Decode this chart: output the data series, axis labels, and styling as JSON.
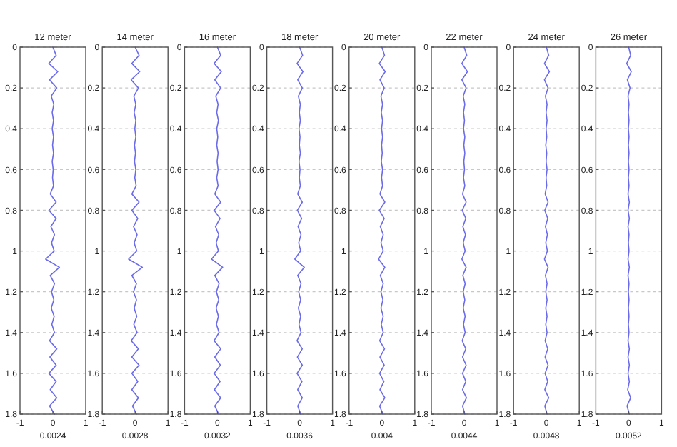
{
  "chart_data": [
    {
      "type": "line",
      "title": "12 meter",
      "xlabel": "0.0024",
      "xlim": [
        -1,
        1
      ],
      "xticks": [
        -1,
        0,
        1
      ],
      "ylim": [
        1.8,
        0
      ],
      "yticks": [
        0,
        0.2,
        0.4,
        0.6,
        0.8,
        1,
        1.2,
        1.4,
        1.6,
        1.8
      ],
      "grid": "y",
      "series": [
        {
          "color": "#6b6bea",
          "x": [
            0,
            0.1,
            -0.12,
            0.15,
            -0.1,
            0.12,
            -0.05,
            0.03,
            -0.02,
            0.02,
            -0.02,
            0.02,
            -0.01,
            0.02,
            -0.02,
            0.01,
            -0.01,
            0.02,
            -0.08,
            0.1,
            -0.12,
            0.1,
            -0.06,
            0.05,
            -0.04,
            0.04,
            -0.22,
            0.2,
            -0.08,
            0.05,
            -0.04,
            0.03,
            -0.05,
            0.04,
            -0.03,
            0.05,
            -0.1,
            0.12,
            -0.09,
            0.1,
            -0.12,
            0.1,
            -0.08,
            0.12,
            -0.1,
            0.05
          ],
          "values": [
            0,
            0.04,
            0.08,
            0.12,
            0.16,
            0.2,
            0.24,
            0.28,
            0.32,
            0.36,
            0.4,
            0.44,
            0.48,
            0.52,
            0.56,
            0.6,
            0.64,
            0.68,
            0.72,
            0.76,
            0.8,
            0.84,
            0.88,
            0.92,
            0.96,
            1,
            1.04,
            1.08,
            1.12,
            1.16,
            1.2,
            1.24,
            1.28,
            1.32,
            1.36,
            1.4,
            1.44,
            1.48,
            1.52,
            1.56,
            1.6,
            1.64,
            1.68,
            1.72,
            1.76,
            1.8
          ]
        }
      ]
    },
    {
      "type": "line",
      "title": "14 meter",
      "xlabel": "0.0028",
      "xlim": [
        -1,
        1
      ],
      "xticks": [
        -1,
        0,
        1
      ],
      "ylim": [
        1.8,
        0
      ],
      "yticks": [
        0,
        0.2,
        0.4,
        0.6,
        0.8,
        1,
        1.2,
        1.4,
        1.6,
        1.8
      ],
      "grid": "y",
      "series": [
        {
          "color": "#6b6bea",
          "x": [
            0,
            0.12,
            -0.1,
            0.14,
            -0.12,
            0.1,
            -0.04,
            0.02,
            -0.03,
            0.02,
            -0.01,
            0.02,
            -0.02,
            0.01,
            -0.02,
            0.02,
            -0.01,
            0.03,
            -0.1,
            0.12,
            -0.1,
            0.08,
            -0.05,
            0.06,
            -0.03,
            0.05,
            -0.2,
            0.22,
            -0.1,
            0.04,
            -0.05,
            0.04,
            -0.03,
            0.05,
            -0.04,
            0.06,
            -0.12,
            0.1,
            -0.1,
            0.12,
            -0.1,
            0.08,
            -0.1,
            0.1,
            -0.08,
            0.04
          ],
          "values": [
            0,
            0.04,
            0.08,
            0.12,
            0.16,
            0.2,
            0.24,
            0.28,
            0.32,
            0.36,
            0.4,
            0.44,
            0.48,
            0.52,
            0.56,
            0.6,
            0.64,
            0.68,
            0.72,
            0.76,
            0.8,
            0.84,
            0.88,
            0.92,
            0.96,
            1,
            1.04,
            1.08,
            1.12,
            1.16,
            1.2,
            1.24,
            1.28,
            1.32,
            1.36,
            1.4,
            1.44,
            1.48,
            1.52,
            1.56,
            1.6,
            1.64,
            1.68,
            1.72,
            1.76,
            1.8
          ]
        }
      ]
    },
    {
      "type": "line",
      "title": "16 meter",
      "xlabel": "0.0032",
      "xlim": [
        -1,
        1
      ],
      "xticks": [
        -1,
        0,
        1
      ],
      "ylim": [
        1.8,
        0
      ],
      "yticks": [
        0,
        0.2,
        0.4,
        0.6,
        0.8,
        1,
        1.2,
        1.4,
        1.6,
        1.8
      ],
      "grid": "y",
      "series": [
        {
          "color": "#6b6bea",
          "x": [
            0,
            0.1,
            -0.1,
            0.12,
            -0.08,
            0.1,
            -0.05,
            0.02,
            -0.02,
            0.03,
            -0.02,
            0.01,
            -0.02,
            0.02,
            -0.01,
            0.02,
            -0.02,
            0.02,
            -0.08,
            0.1,
            -0.1,
            0.08,
            -0.06,
            0.04,
            -0.04,
            0.03,
            -0.18,
            0.16,
            -0.08,
            0.05,
            -0.03,
            0.04,
            -0.04,
            0.03,
            -0.03,
            0.05,
            -0.1,
            0.1,
            -0.08,
            0.09,
            -0.1,
            0.08,
            -0.09,
            0.1,
            -0.08,
            0.04
          ],
          "values": [
            0,
            0.04,
            0.08,
            0.12,
            0.16,
            0.2,
            0.24,
            0.28,
            0.32,
            0.36,
            0.4,
            0.44,
            0.48,
            0.52,
            0.56,
            0.6,
            0.64,
            0.68,
            0.72,
            0.76,
            0.8,
            0.84,
            0.88,
            0.92,
            0.96,
            1,
            1.04,
            1.08,
            1.12,
            1.16,
            1.2,
            1.24,
            1.28,
            1.32,
            1.36,
            1.4,
            1.44,
            1.48,
            1.52,
            1.56,
            1.6,
            1.64,
            1.68,
            1.72,
            1.76,
            1.8
          ]
        }
      ]
    },
    {
      "type": "line",
      "title": "18 meter",
      "xlabel": "0.0036",
      "xlim": [
        -1,
        1
      ],
      "xticks": [
        -1,
        0,
        1
      ],
      "ylim": [
        1.8,
        0
      ],
      "yticks": [
        0,
        0.2,
        0.4,
        0.6,
        0.8,
        1,
        1.2,
        1.4,
        1.6,
        1.8
      ],
      "grid": "y",
      "series": [
        {
          "color": "#6b6bea",
          "x": [
            0,
            0.09,
            -0.08,
            0.1,
            -0.06,
            0.08,
            -0.04,
            0.02,
            -0.01,
            0.02,
            -0.02,
            0.01,
            -0.01,
            0.02,
            -0.02,
            0.01,
            -0.01,
            0.02,
            -0.06,
            0.08,
            -0.07,
            0.06,
            -0.05,
            0.04,
            -0.03,
            0.03,
            -0.15,
            0.14,
            -0.06,
            0.04,
            -0.03,
            0.03,
            -0.04,
            0.03,
            -0.02,
            0.04,
            -0.08,
            0.08,
            -0.07,
            0.08,
            -0.08,
            0.07,
            -0.06,
            0.08,
            -0.06,
            0.03
          ],
          "values": [
            0,
            0.04,
            0.08,
            0.12,
            0.16,
            0.2,
            0.24,
            0.28,
            0.32,
            0.36,
            0.4,
            0.44,
            0.48,
            0.52,
            0.56,
            0.6,
            0.64,
            0.68,
            0.72,
            0.76,
            0.8,
            0.84,
            0.88,
            0.92,
            0.96,
            1,
            1.04,
            1.08,
            1.12,
            1.16,
            1.2,
            1.24,
            1.28,
            1.32,
            1.36,
            1.4,
            1.44,
            1.48,
            1.52,
            1.56,
            1.6,
            1.64,
            1.68,
            1.72,
            1.76,
            1.8
          ]
        }
      ]
    },
    {
      "type": "line",
      "title": "20 meter",
      "xlabel": "0.004",
      "xlim": [
        -1,
        1
      ],
      "xticks": [
        -1,
        0,
        1
      ],
      "ylim": [
        1.8,
        0
      ],
      "yticks": [
        0,
        0.2,
        0.4,
        0.6,
        0.8,
        1,
        1.2,
        1.4,
        1.6,
        1.8
      ],
      "grid": "y",
      "series": [
        {
          "color": "#6b6bea",
          "x": [
            0,
            0.08,
            -0.08,
            0.1,
            -0.06,
            0.07,
            -0.03,
            0.02,
            -0.02,
            0.02,
            -0.01,
            0.02,
            -0.01,
            0.01,
            -0.02,
            0.02,
            -0.01,
            0.02,
            -0.06,
            0.09,
            -0.08,
            0.07,
            -0.05,
            0.04,
            -0.03,
            0.04,
            -0.1,
            0.09,
            -0.05,
            0.04,
            -0.03,
            0.03,
            -0.03,
            0.04,
            -0.02,
            0.04,
            -0.07,
            0.08,
            -0.06,
            0.07,
            -0.07,
            0.06,
            -0.06,
            0.09,
            -0.07,
            0.03
          ],
          "values": [
            0,
            0.04,
            0.08,
            0.12,
            0.16,
            0.2,
            0.24,
            0.28,
            0.32,
            0.36,
            0.4,
            0.44,
            0.48,
            0.52,
            0.56,
            0.6,
            0.64,
            0.68,
            0.72,
            0.76,
            0.8,
            0.84,
            0.88,
            0.92,
            0.96,
            1,
            1.04,
            1.08,
            1.12,
            1.16,
            1.2,
            1.24,
            1.28,
            1.32,
            1.36,
            1.4,
            1.44,
            1.48,
            1.52,
            1.56,
            1.6,
            1.64,
            1.68,
            1.72,
            1.76,
            1.8
          ]
        }
      ]
    },
    {
      "type": "line",
      "title": "22 meter",
      "xlabel": "0.0044",
      "xlim": [
        -1,
        1
      ],
      "xticks": [
        -1,
        0,
        1
      ],
      "ylim": [
        1.8,
        0
      ],
      "yticks": [
        0,
        0.2,
        0.4,
        0.6,
        0.8,
        1,
        1.2,
        1.4,
        1.6,
        1.8
      ],
      "grid": "y",
      "series": [
        {
          "color": "#6b6bea",
          "x": [
            0,
            0.08,
            -0.07,
            0.1,
            -0.07,
            0.06,
            -0.03,
            0.02,
            -0.02,
            0.01,
            -0.02,
            0.02,
            -0.01,
            0.02,
            -0.01,
            0.01,
            -0.02,
            0.02,
            -0.05,
            0.06,
            -0.06,
            0.05,
            -0.04,
            0.04,
            -0.03,
            0.03,
            -0.07,
            0.06,
            -0.04,
            0.03,
            -0.03,
            0.02,
            -0.03,
            0.03,
            -0.02,
            0.03,
            -0.06,
            0.05,
            -0.05,
            0.06,
            -0.05,
            0.05,
            -0.05,
            0.07,
            -0.05,
            0.02
          ],
          "values": [
            0,
            0.04,
            0.08,
            0.12,
            0.16,
            0.2,
            0.24,
            0.28,
            0.32,
            0.36,
            0.4,
            0.44,
            0.48,
            0.52,
            0.56,
            0.6,
            0.64,
            0.68,
            0.72,
            0.76,
            0.8,
            0.84,
            0.88,
            0.92,
            0.96,
            1,
            1.04,
            1.08,
            1.12,
            1.16,
            1.2,
            1.24,
            1.28,
            1.32,
            1.36,
            1.4,
            1.44,
            1.48,
            1.52,
            1.56,
            1.6,
            1.64,
            1.68,
            1.72,
            1.76,
            1.8
          ]
        }
      ]
    },
    {
      "type": "line",
      "title": "24 meter",
      "xlabel": "0.0048",
      "xlim": [
        -1,
        1
      ],
      "xticks": [
        -1,
        0,
        1
      ],
      "ylim": [
        1.8,
        0
      ],
      "yticks": [
        0,
        0.2,
        0.4,
        0.6,
        0.8,
        1,
        1.2,
        1.4,
        1.6,
        1.8
      ],
      "grid": "y",
      "series": [
        {
          "color": "#6b6bea",
          "x": [
            0,
            0.07,
            -0.06,
            0.09,
            -0.06,
            0.05,
            -0.03,
            0.02,
            -0.01,
            0.02,
            -0.01,
            0.01,
            -0.02,
            0.01,
            -0.01,
            0.02,
            -0.01,
            0.01,
            -0.04,
            0.05,
            -0.05,
            0.04,
            -0.03,
            0.03,
            -0.02,
            0.03,
            -0.06,
            0.05,
            -0.03,
            0.02,
            -0.02,
            0.02,
            -0.02,
            0.02,
            -0.02,
            0.02,
            -0.04,
            0.04,
            -0.04,
            0.05,
            -0.04,
            0.04,
            -0.05,
            0.07,
            -0.05,
            0.02
          ],
          "values": [
            0,
            0.04,
            0.08,
            0.12,
            0.16,
            0.2,
            0.24,
            0.28,
            0.32,
            0.36,
            0.4,
            0.44,
            0.48,
            0.52,
            0.56,
            0.6,
            0.64,
            0.68,
            0.72,
            0.76,
            0.8,
            0.84,
            0.88,
            0.92,
            0.96,
            1,
            1.04,
            1.08,
            1.12,
            1.16,
            1.2,
            1.24,
            1.28,
            1.32,
            1.36,
            1.4,
            1.44,
            1.48,
            1.52,
            1.56,
            1.6,
            1.64,
            1.68,
            1.72,
            1.76,
            1.8
          ]
        }
      ]
    },
    {
      "type": "line",
      "title": "26 meter",
      "xlabel": "0.0052",
      "xlim": [
        -1,
        1
      ],
      "xticks": [
        -1,
        0,
        1
      ],
      "ylim": [
        1.8,
        0
      ],
      "yticks": [
        0,
        0.2,
        0.4,
        0.6,
        0.8,
        1,
        1.2,
        1.4,
        1.6,
        1.8
      ],
      "grid": "y",
      "series": [
        {
          "color": "#6b6bea",
          "x": [
            0,
            0.06,
            -0.06,
            0.08,
            -0.04,
            0.04,
            -0.02,
            0.01,
            -0.01,
            0.01,
            -0.01,
            0.01,
            -0.01,
            0.01,
            -0.01,
            0.01,
            -0.01,
            0.01,
            -0.02,
            0.02,
            -0.02,
            0.02,
            -0.02,
            0.01,
            -0.01,
            0.01,
            -0.02,
            0.02,
            -0.02,
            0.01,
            -0.01,
            0.01,
            -0.01,
            0.01,
            -0.01,
            0.01,
            -0.02,
            0.02,
            -0.02,
            0.02,
            -0.02,
            0.02,
            -0.03,
            0.06,
            -0.05,
            0.02
          ],
          "values": [
            0,
            0.04,
            0.08,
            0.12,
            0.16,
            0.2,
            0.24,
            0.28,
            0.32,
            0.36,
            0.4,
            0.44,
            0.48,
            0.52,
            0.56,
            0.6,
            0.64,
            0.68,
            0.72,
            0.76,
            0.8,
            0.84,
            0.88,
            0.92,
            0.96,
            1,
            1.04,
            1.08,
            1.12,
            1.16,
            1.2,
            1.24,
            1.28,
            1.32,
            1.36,
            1.4,
            1.44,
            1.48,
            1.52,
            1.56,
            1.6,
            1.64,
            1.68,
            1.72,
            1.76,
            1.8
          ]
        }
      ]
    }
  ]
}
